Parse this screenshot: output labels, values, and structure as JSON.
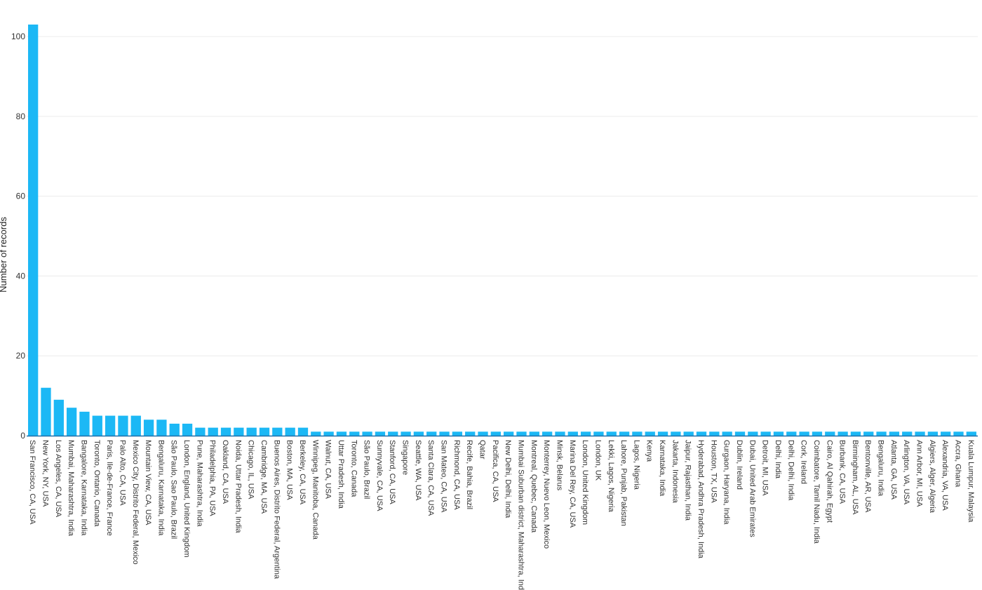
{
  "chart_data": {
    "type": "bar",
    "ylabel": "Number of records",
    "xlabel": "",
    "ylim": [
      0,
      103
    ],
    "yticks": [
      0,
      20,
      40,
      60,
      80,
      100
    ],
    "grid": true,
    "bar_color": "#1cb8f5",
    "categories": [
      "San Francisco, CA, USA",
      "New York, NY, USA",
      "Los Angeles, CA, USA",
      "Mumbai, Maharashtra, India",
      "Bangalore, Karnataka, India",
      "Toronto, Ontario, Canada",
      "Paris, Ile-de-France, France",
      "Palo Alto, CA, USA",
      "Mexico City, Distrito Federal, Mexico",
      "Mountain View, CA, USA",
      "Bengaluru, Karnataka, India",
      "São Paulo, Sao Paulo, Brazil",
      "London, England, United Kingdom",
      "Pune, Maharashtra, India",
      "Philadelphia, PA, USA",
      "Oakland, CA, USA",
      "Noida, Uttar Pradesh, India",
      "Chicago, IL, USA",
      "Cambridge, MA, USA",
      "Buenos Aires, Distrito Federal, Argentina",
      "Boston, MA, USA",
      "Berkeley, CA, USA",
      "Winnipeg, Manitoba, Canada",
      "Walnut, CA, USA",
      "Uttar Pradesh, India",
      "Toronto, Canada",
      "São Paulo, Brazil",
      "Sunnyvale, CA, USA",
      "Stanford, CA, USA",
      "Singapore",
      "Seattle, WA, USA",
      "Santa Clara, CA, USA",
      "San Mateo, CA, USA",
      "Richmond, CA, USA",
      "Recife, Bahia, Brazil",
      "Qatar",
      "Pacifica, CA, USA",
      "New Delhi, Delhi, India",
      "Mumbai Suburban district, Maharashtra, India",
      "Montreal, Quebec, Canada",
      "Monterrey, Nuevo Leon, Mexico",
      "Minsk, Belarus",
      "Marina Del Rey, CA, USA",
      "London, United Kingdom",
      "London, UK",
      "Lekki, Lagos, Nigeria",
      "Lahore, Punjab, Pakistan",
      "Lagos, Nigeria",
      "Kenya",
      "Karnataka, India",
      "Jakarta, Indonesia",
      "Jaipur, Rajasthan, India",
      "Hyderabad, Andhra Pradesh, India",
      "Houston, TX, USA",
      "Gurgaon, Haryana, India",
      "Dublin, Ireland",
      "Dubai, United Arab Emirates",
      "Detroit, MI, USA",
      "Delhi, India",
      "Delhi, Delhi, India",
      "Cork, Ireland",
      "Coimbatore, Tamil Nadu, India",
      "Cairo, Al Qahirah, Egypt",
      "Burbank, CA, USA",
      "Birmingham, AL, USA",
      "Bentonville, AR, USA",
      "Bengaluru, India",
      "Atlanta, GA, USA",
      "Arlington, VA, USA",
      "Ann Arbor, MI, USA",
      "Algiers, Alger, Algeria",
      "Alexandria, VA, USA",
      "Accra, Ghana",
      "Kuala Lumpur, Malaysia"
    ],
    "values": [
      103,
      12,
      9,
      7,
      6,
      5,
      5,
      5,
      5,
      4,
      4,
      3,
      3,
      2,
      2,
      2,
      2,
      2,
      2,
      2,
      2,
      2,
      1,
      1,
      1,
      1,
      1,
      1,
      1,
      1,
      1,
      1,
      1,
      1,
      1,
      1,
      1,
      1,
      1,
      1,
      1,
      1,
      1,
      1,
      1,
      1,
      1,
      1,
      1,
      1,
      1,
      1,
      1,
      1,
      1,
      1,
      1,
      1,
      1,
      1,
      1,
      1,
      1,
      1,
      1,
      1,
      1,
      1,
      1,
      1,
      1,
      1,
      1,
      1
    ]
  }
}
